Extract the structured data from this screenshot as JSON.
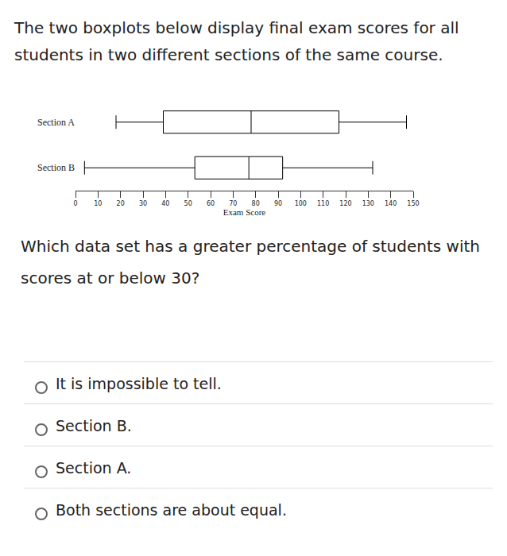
{
  "header": {
    "text": "The two boxplots below display final exam scores for all students in two different sections of the same course."
  },
  "chart_data": {
    "type": "box",
    "orientation": "horizontal",
    "categories": [
      "Section A",
      "Section B"
    ],
    "min": [
      18,
      4
    ],
    "q1": [
      39,
      53
    ],
    "median": [
      78,
      77
    ],
    "q3": [
      117,
      92
    ],
    "max": [
      147,
      132
    ],
    "color": "#000000",
    "x_label": "Exam Score",
    "xlim": [
      0,
      150
    ],
    "xticks": [
      0,
      10,
      20,
      30,
      40,
      50,
      60,
      70,
      80,
      90,
      100,
      110,
      120,
      130,
      140,
      150
    ],
    "grid": false
  },
  "question": "Which data set has a greater percentage of students with scores at or below 30?",
  "options": [
    "It is impossible to tell.",
    "Section B.",
    "Section A.",
    "Both sections are about equal."
  ]
}
